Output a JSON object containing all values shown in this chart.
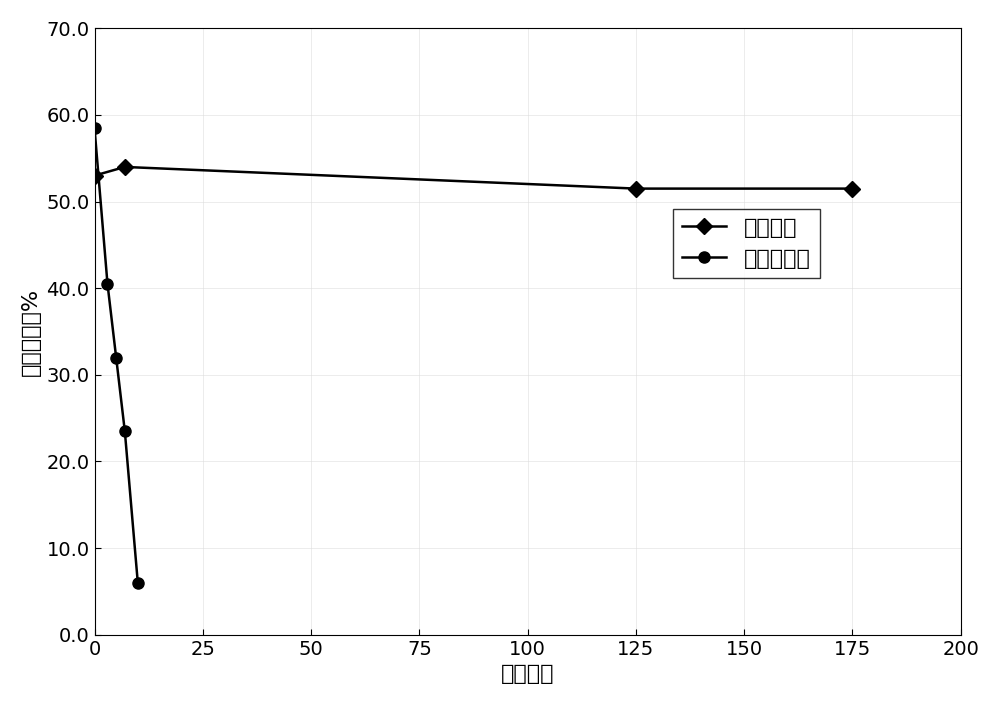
{
  "series1_label": "原位提纯",
  "series1_x": [
    0,
    7,
    125,
    175
  ],
  "series1_y": [
    53.0,
    54.0,
    51.5,
    51.5
  ],
  "series2_label": "无原位提纯",
  "series2_x": [
    0,
    3,
    5,
    7,
    10
  ],
  "series2_y": [
    58.5,
    40.5,
    32.0,
    23.5,
    6.0
  ],
  "xlabel": "时间／天",
  "ylabel": "量子效率／%",
  "xlim": [
    0,
    200
  ],
  "ylim": [
    0.0,
    70.0
  ],
  "xticks": [
    0,
    25,
    50,
    75,
    100,
    125,
    150,
    175,
    200
  ],
  "yticks": [
    0.0,
    10.0,
    20.0,
    30.0,
    40.0,
    50.0,
    60.0,
    70.0
  ],
  "line_color": "#000000",
  "marker_style1": "D",
  "marker_style2": "o",
  "marker_size": 8,
  "line_width": 1.8,
  "font_size": 16,
  "tick_font_size": 14,
  "background_color": "#ffffff"
}
